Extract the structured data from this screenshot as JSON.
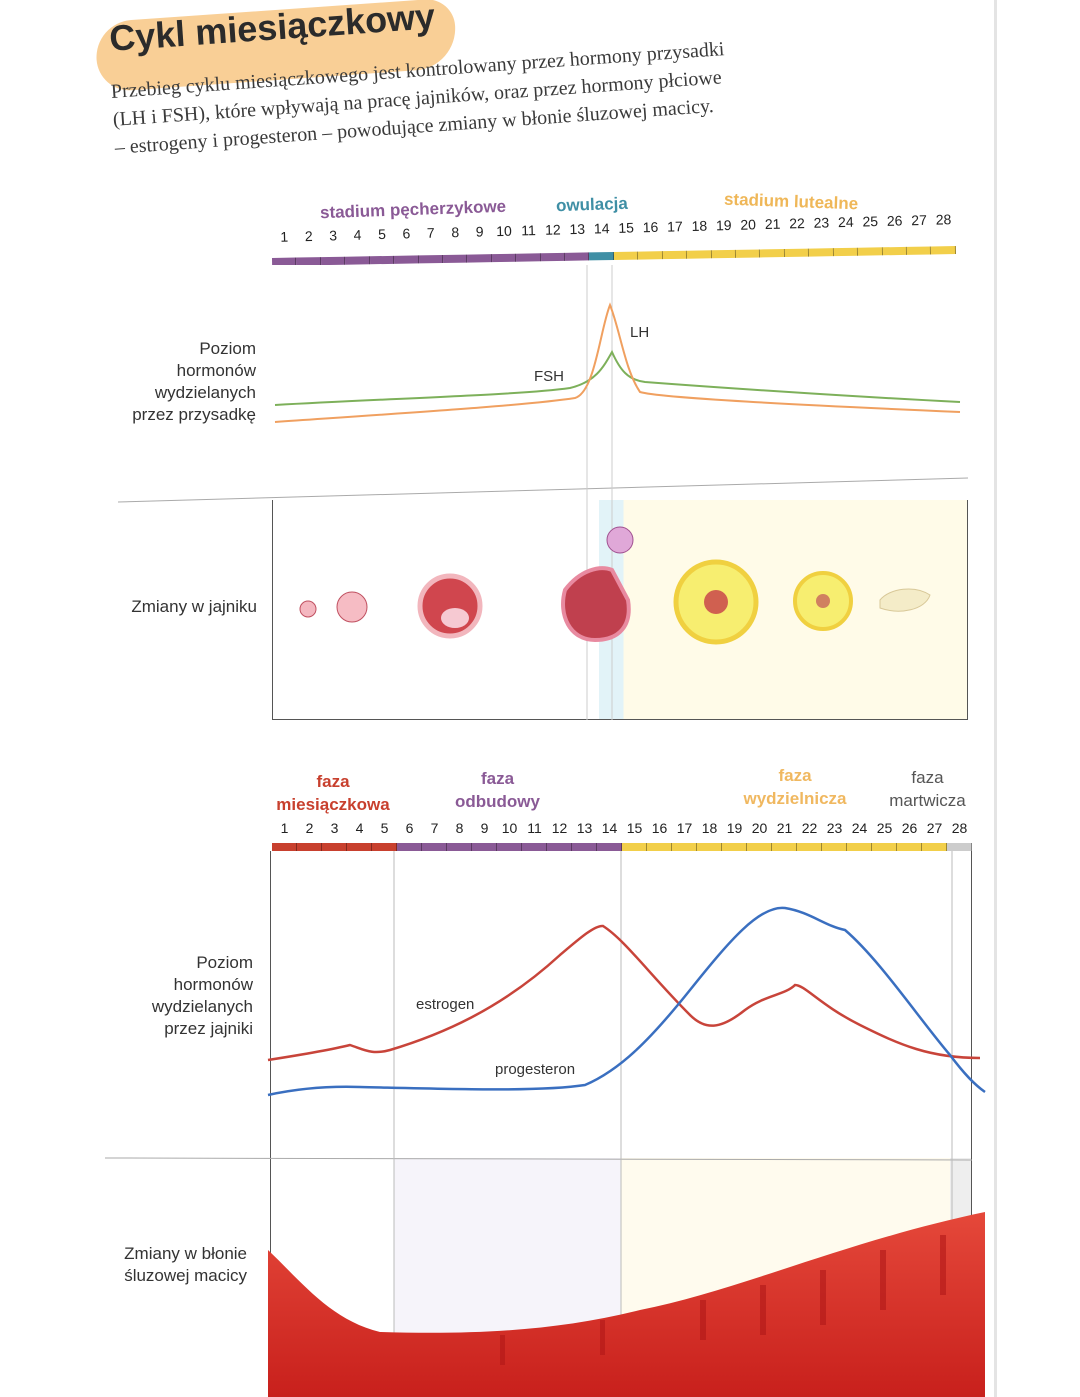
{
  "title": "Cykl miesiączkowy",
  "intro": "Przebieg cyklu miesiączkowego jest kontrolowany przez hormony przysadki (LH i FSH), które wpływają na pracę jajników, oraz przez hormony płciowe – estrogeny i progesteron – powodujące zmiany w błonie śluzowej macicy.",
  "top_chart": {
    "phases": [
      {
        "label": "stadium pęcherzykowe",
        "color": "#8a5a96"
      },
      {
        "label": "owulacja",
        "color": "#3f8fa5"
      },
      {
        "label": "stadium lutealne",
        "color": "#efb758"
      }
    ],
    "days": [
      "1",
      "2",
      "3",
      "4",
      "5",
      "6",
      "7",
      "8",
      "9",
      "10",
      "11",
      "12",
      "13",
      "14",
      "15",
      "16",
      "17",
      "18",
      "19",
      "20",
      "21",
      "22",
      "23",
      "24",
      "25",
      "26",
      "27",
      "28"
    ],
    "row_labels": {
      "hormones": "Poziom hormonów wydzielanych przez przysadkę",
      "ovary": "Zmiany w jajniku"
    },
    "curves": [
      {
        "label": "FSH",
        "color": "#7db05a"
      },
      {
        "label": "LH",
        "color": "#f0a060"
      }
    ]
  },
  "bottom_chart": {
    "phases": [
      {
        "label_1": "faza",
        "label_2": "miesiączkowa",
        "color": "#c8402e"
      },
      {
        "label_1": "faza",
        "label_2": "odbudowy",
        "color": "#8a5a96"
      },
      {
        "label_1": "faza",
        "label_2": "wydzielnicza",
        "color": "#f0b860"
      },
      {
        "label_1": "faza",
        "label_2": "martwicza",
        "color": "#555555"
      }
    ],
    "days": [
      "1",
      "2",
      "3",
      "4",
      "5",
      "6",
      "7",
      "8",
      "9",
      "10",
      "11",
      "12",
      "13",
      "14",
      "15",
      "16",
      "17",
      "18",
      "19",
      "20",
      "21",
      "22",
      "23",
      "24",
      "25",
      "26",
      "27",
      "28"
    ],
    "row_labels": {
      "hormones": "Poziom hormonów wydzielanych przez jajniki",
      "endometrium": "Zmiany w błonie śluzowej macicy"
    },
    "curves": [
      {
        "label": "estrogen",
        "color": "#c8443a"
      },
      {
        "label": "progesteron",
        "color": "#3a6fc0"
      }
    ]
  }
}
